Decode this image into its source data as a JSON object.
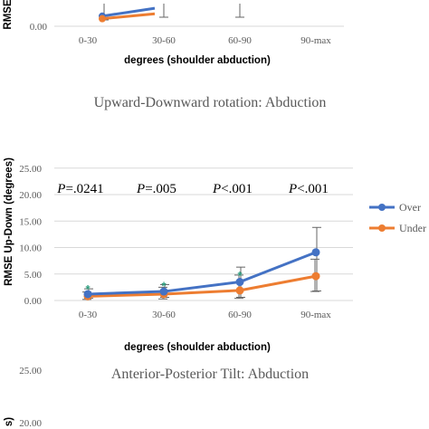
{
  "colors": {
    "over": "#4472c4",
    "under": "#ed7d31",
    "grid": "#d9d9d9",
    "errorbar": "#666666",
    "star": "#2e9e7e"
  },
  "chart_data": [
    {
      "type": "line",
      "partial": "top",
      "title": "",
      "xlabel": "degrees (shoulder abduction)",
      "ylabel": "RMSE",
      "categories": [
        "0-30",
        "30-60",
        "60-90",
        "90-max"
      ],
      "y_ticks": [
        "0.00"
      ],
      "series": [
        {
          "name": "Over",
          "values": [
            3.5,
            6.2,
            null,
            null
          ]
        },
        {
          "name": "Under",
          "values": [
            2.6,
            4.3,
            null,
            null
          ]
        }
      ]
    },
    {
      "type": "line",
      "title": "Upward-Downward rotation: Abduction",
      "xlabel": "degrees (shoulder abduction)",
      "ylabel": "RMSE Up-Down (degrees)",
      "categories": [
        "0-30",
        "30-60",
        "60-90",
        "90-max"
      ],
      "ylim": [
        0,
        25
      ],
      "y_ticks": [
        "0.00",
        "5.00",
        "10.00",
        "15.00",
        "20.00",
        "25.00"
      ],
      "grid": true,
      "legend": "right",
      "series": [
        {
          "name": "Over",
          "values": [
            1.2,
            1.7,
            3.5,
            9.1
          ],
          "err_low": [
            0.4,
            0.6,
            0.6,
            1.8
          ],
          "err_high": [
            2.2,
            3.0,
            6.3,
            13.8
          ]
        },
        {
          "name": "Under",
          "values": [
            0.8,
            1.2,
            1.9,
            4.6
          ],
          "err_low": [
            0.2,
            0.3,
            0.4,
            1.7
          ],
          "err_high": [
            1.6,
            2.5,
            4.8,
            7.8
          ]
        }
      ],
      "annotations": [
        {
          "label": "P=.0241",
          "category": "0-30"
        },
        {
          "label": "P=.005",
          "category": "30-60"
        },
        {
          "label": "P<.001",
          "category": "60-90"
        },
        {
          "label": "P<.001",
          "category": "90-max"
        }
      ],
      "significance_markers": [
        {
          "text": "*",
          "category": "0-30",
          "y": 2.4
        },
        {
          "text": "*",
          "category": "30-60",
          "y": 3.0
        },
        {
          "text": "*",
          "category": "60-90",
          "y": 5.0
        }
      ]
    },
    {
      "type": "line",
      "partial": "bottom",
      "title": "Anterior-Posterior Tilt: Abduction",
      "ylabel": "s)",
      "y_ticks": [
        "25.00",
        "20.00"
      ]
    }
  ]
}
